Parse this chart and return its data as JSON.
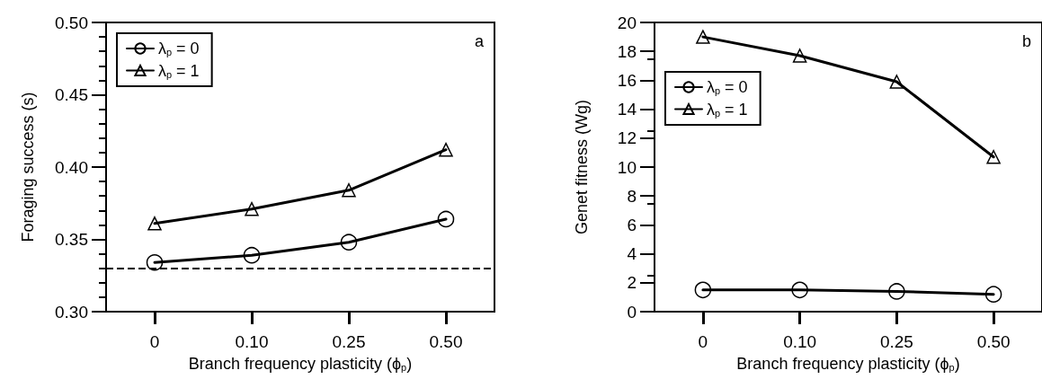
{
  "chart_data": [
    {
      "type": "line",
      "xlabel": "Branch frequency plasticity (ϕ$_{p}$)",
      "ylabel": "Foraging success (s)",
      "categories": [
        "0",
        "0.10",
        "0.25",
        "0.50"
      ],
      "series": [
        {
          "name": "λ$_{p}$ = 0",
          "color": "#000000",
          "marker": "circle",
          "values": [
            0.334,
            0.339,
            0.348,
            0.364
          ]
        },
        {
          "name": "λ$_{p}$ = 1",
          "color": "#000000",
          "marker": "triangle",
          "values": [
            0.361,
            0.371,
            0.384,
            0.412
          ]
        }
      ],
      "ylim": [
        0.3,
        0.5
      ],
      "yticks": [
        {
          "value": 0.3,
          "label": "0.30"
        },
        0.35,
        {
          "value": 0.4,
          "label": "0.40"
        },
        0.45,
        {
          "value": 0.5,
          "label": "0.50"
        }
      ],
      "ref_lines": [
        {
          "axis": "y",
          "value": 0.33,
          "color": "#000000",
          "line_style": "dashed"
        }
      ],
      "annotations": [
        "a"
      ],
      "legend": "top left",
      "grid": false,
      "line_style": "solid"
    },
    {
      "type": "line",
      "xlabel": "Branch frequency plasticity (ϕ$_{p}$)",
      "ylabel": "Genet fitness (Wg)",
      "categories": [
        "0",
        "0.10",
        "0.25",
        "0.50"
      ],
      "series": [
        {
          "name": "λ$_{p}$ = 0",
          "color": "#000000",
          "marker": "circle",
          "values": [
            1.5,
            1.5,
            1.4,
            1.2
          ]
        },
        {
          "name": "λ$_{p}$ = 1",
          "color": "#000000",
          "marker": "triangle",
          "values": [
            19.0,
            17.7,
            15.9,
            10.7
          ]
        }
      ],
      "ylim": [
        0,
        20
      ],
      "yticks": [
        0,
        2,
        4,
        6,
        8,
        10,
        12,
        14,
        16,
        18,
        20
      ],
      "annotations": [
        "b"
      ],
      "legend": "top left",
      "grid": false,
      "line_style": "solid"
    }
  ]
}
